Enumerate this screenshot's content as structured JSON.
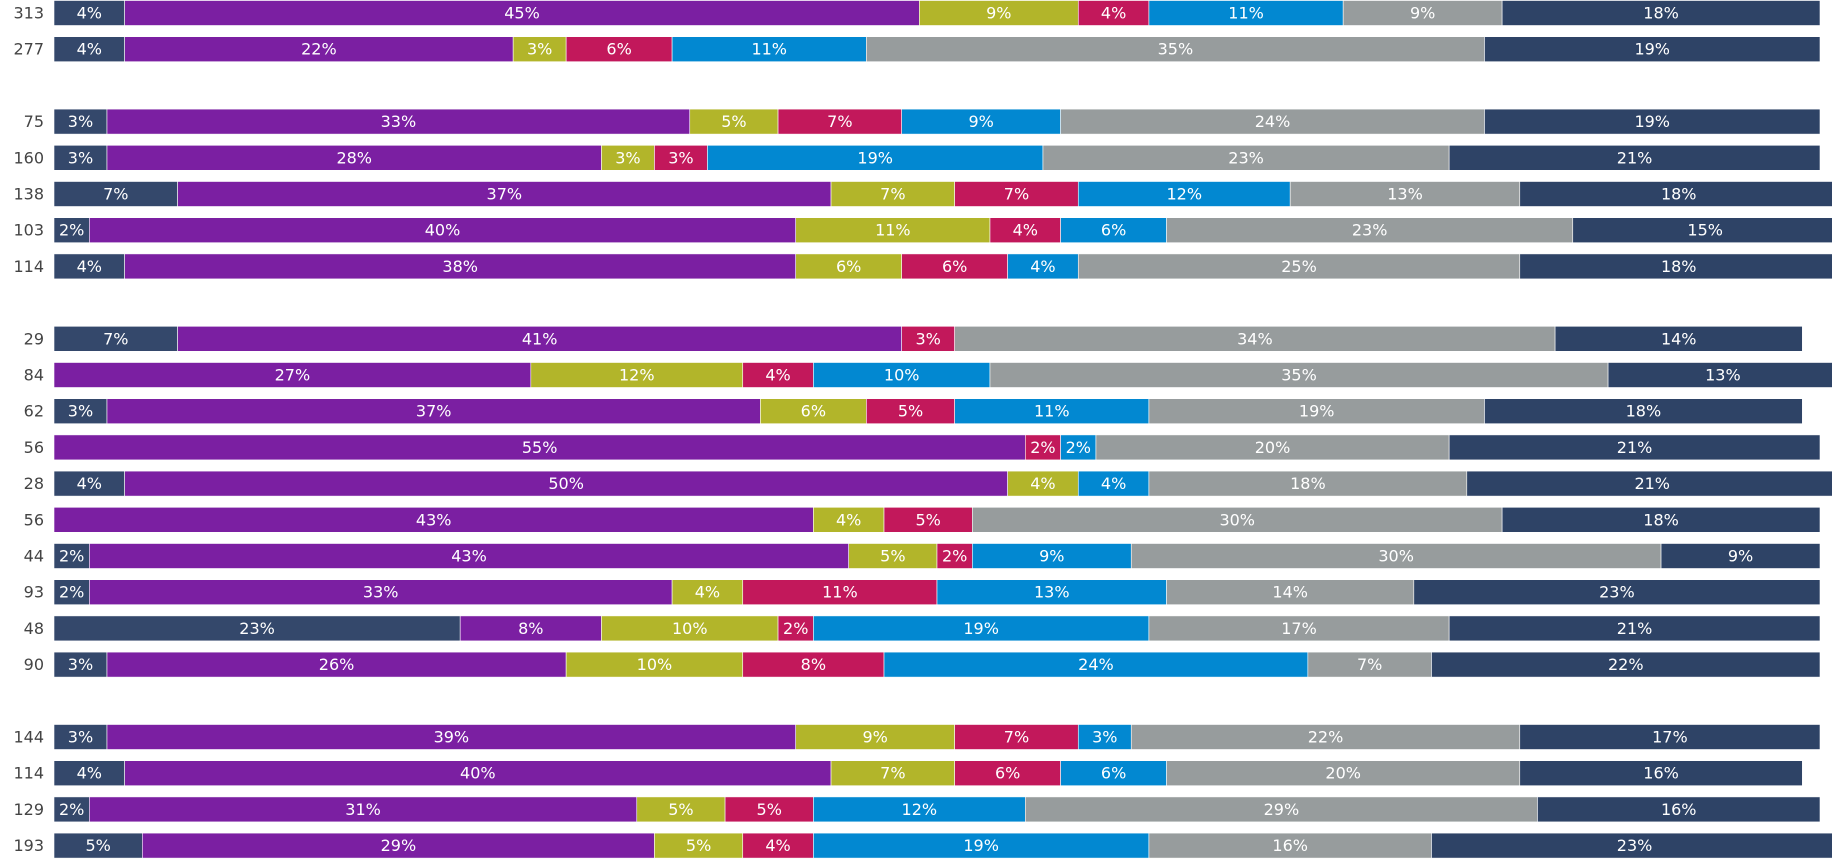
{
  "chart_data": {
    "type": "bar",
    "orientation": "horizontal",
    "stacked": true,
    "xlim": [
      0,
      100
    ],
    "categories": [
      "313",
      "277",
      null,
      "75",
      "160",
      "138",
      "103",
      "114",
      null,
      "29",
      "84",
      "62",
      "56",
      "28",
      "56",
      "44",
      "93",
      "48",
      "90",
      null,
      "144",
      "114",
      "129",
      "193"
    ],
    "series": [
      {
        "color": "#34486b",
        "values": [
          4,
          4,
          null,
          3,
          3,
          7,
          2,
          4,
          null,
          7,
          null,
          3,
          null,
          4,
          null,
          2,
          2,
          23,
          3,
          null,
          3,
          4,
          2,
          5
        ],
        "value_labels": [
          "4%",
          "4%",
          null,
          "3%",
          "3%",
          "7%",
          "2%",
          "4%",
          null,
          "7%",
          null,
          "3%",
          null,
          "4%",
          null,
          "2%",
          "2%",
          "23%",
          "3%",
          null,
          "3%",
          "4%",
          "2%",
          "5%"
        ]
      },
      {
        "color": "#7b1fa2",
        "values": [
          45,
          22,
          null,
          33,
          28,
          37,
          40,
          38,
          null,
          41,
          27,
          37,
          55,
          50,
          43,
          43,
          33,
          8,
          26,
          null,
          39,
          40,
          31,
          29
        ],
        "value_labels": [
          "45%",
          "22%",
          null,
          "33%",
          "28%",
          "37%",
          "40%",
          "38%",
          null,
          "41%",
          "27%",
          "37%",
          "55%",
          "50%",
          "43%",
          "43%",
          "33%",
          "8%",
          "26%",
          null,
          "39%",
          "40%",
          "31%",
          "29%"
        ]
      },
      {
        "color": "#b2b52a",
        "values": [
          9,
          3,
          null,
          5,
          3,
          7,
          11,
          6,
          null,
          null,
          12,
          6,
          null,
          4,
          4,
          5,
          4,
          10,
          10,
          null,
          9,
          7,
          5,
          5
        ],
        "value_labels": [
          "9%",
          "3%",
          null,
          "5%",
          "3%",
          "7%",
          "11%",
          "6%",
          null,
          null,
          "12%",
          "6%",
          null,
          "4%",
          "4%",
          "5%",
          "4%",
          "10%",
          "10%",
          null,
          "9%",
          "7%",
          "5%",
          "5%"
        ]
      },
      {
        "color": "#c2185b",
        "values": [
          4,
          6,
          null,
          7,
          3,
          7,
          4,
          6,
          null,
          3,
          4,
          5,
          2,
          null,
          5,
          2,
          11,
          2,
          8,
          null,
          7,
          6,
          5,
          4
        ],
        "value_labels": [
          "4%",
          "6%",
          null,
          "7%",
          "3%",
          "7%",
          "4%",
          "6%",
          null,
          "3%",
          "4%",
          "5%",
          "2%",
          null,
          "5%",
          "2%",
          "11%",
          "2%",
          "8%",
          null,
          "7%",
          "6%",
          "5%",
          "4%"
        ]
      },
      {
        "color": "#0288d1",
        "values": [
          11,
          11,
          null,
          9,
          19,
          12,
          6,
          4,
          null,
          null,
          10,
          11,
          2,
          4,
          null,
          9,
          13,
          19,
          24,
          null,
          3,
          6,
          12,
          19
        ],
        "value_labels": [
          "11%",
          "11%",
          null,
          "9%",
          "19%",
          "12%",
          "6%",
          "4%",
          null,
          null,
          "10%",
          "11%",
          "2%",
          "4%",
          null,
          "9%",
          "13%",
          "19%",
          "24%",
          null,
          "3%",
          "6%",
          "12%",
          "19%"
        ]
      },
      {
        "color": "#979c9d",
        "values": [
          9,
          35,
          null,
          24,
          23,
          13,
          23,
          25,
          null,
          34,
          35,
          19,
          20,
          18,
          30,
          30,
          14,
          17,
          7,
          null,
          22,
          20,
          29,
          16
        ],
        "value_labels": [
          "9%",
          "35%",
          null,
          "24%",
          "23%",
          "13%",
          "23%",
          "25%",
          null,
          "34%",
          "35%",
          "19%",
          "20%",
          "18%",
          "30%",
          "30%",
          "14%",
          "17%",
          "7%",
          null,
          "22%",
          "20%",
          "29%",
          "16%"
        ]
      },
      {
        "color": "#2e4366",
        "values": [
          18,
          19,
          null,
          19,
          21,
          18,
          15,
          18,
          null,
          14,
          13,
          18,
          21,
          21,
          18,
          9,
          23,
          21,
          22,
          null,
          17,
          16,
          16,
          23
        ],
        "value_labels": [
          "18%",
          "19%",
          null,
          "19%",
          "21%",
          "18%",
          "15%",
          "18%",
          null,
          "14%",
          "13%",
          "18%",
          "21%",
          "21%",
          "18%",
          "9%",
          "23%",
          "21%",
          "22%",
          null,
          "17%",
          "16%",
          "16%",
          "23%"
        ]
      }
    ]
  }
}
